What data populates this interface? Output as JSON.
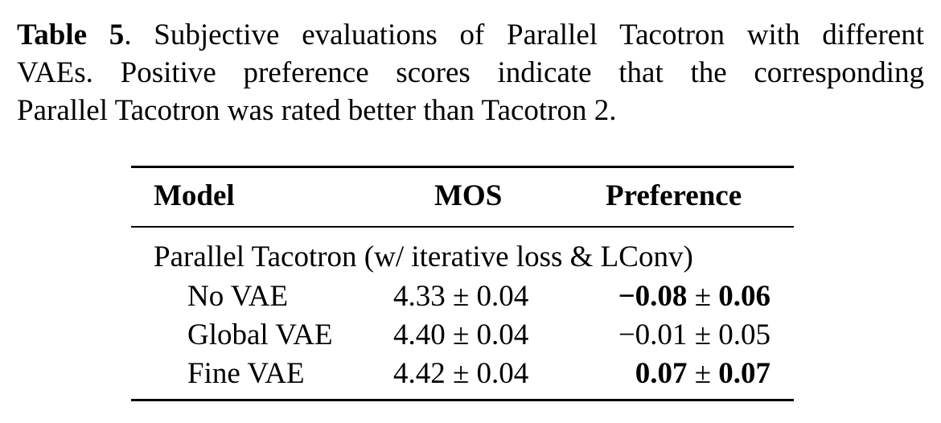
{
  "caption": {
    "label": "Table 5",
    "line1_rest": ".  Subjective evaluations of Parallel Tacotron with different",
    "line2": "VAEs.  Positive preference scores indicate that the corresponding",
    "line3": "Parallel Tacotron was rated better than Tacotron 2."
  },
  "table": {
    "headers": {
      "model": "Model",
      "mos": "MOS",
      "preference": "Preference"
    },
    "group_label": "Parallel Tacotron (w/ iterative loss & LConv)",
    "rows": [
      {
        "model": "No VAE",
        "mos": "4.33 ± 0.04",
        "pref_mean": "−0.08",
        "pref_pm": " ± ",
        "pref_ci": "0.06",
        "pref_bold": true
      },
      {
        "model": "Global VAE",
        "mos": "4.40 ± 0.04",
        "pref_mean": "−0.01",
        "pref_pm": " ± ",
        "pref_ci": "0.05",
        "pref_bold": false
      },
      {
        "model": "Fine VAE",
        "mos": "4.42 ± 0.04",
        "pref_mean": "0.07",
        "pref_pm": " ± ",
        "pref_ci": "0.07",
        "pref_bold": true
      }
    ]
  }
}
